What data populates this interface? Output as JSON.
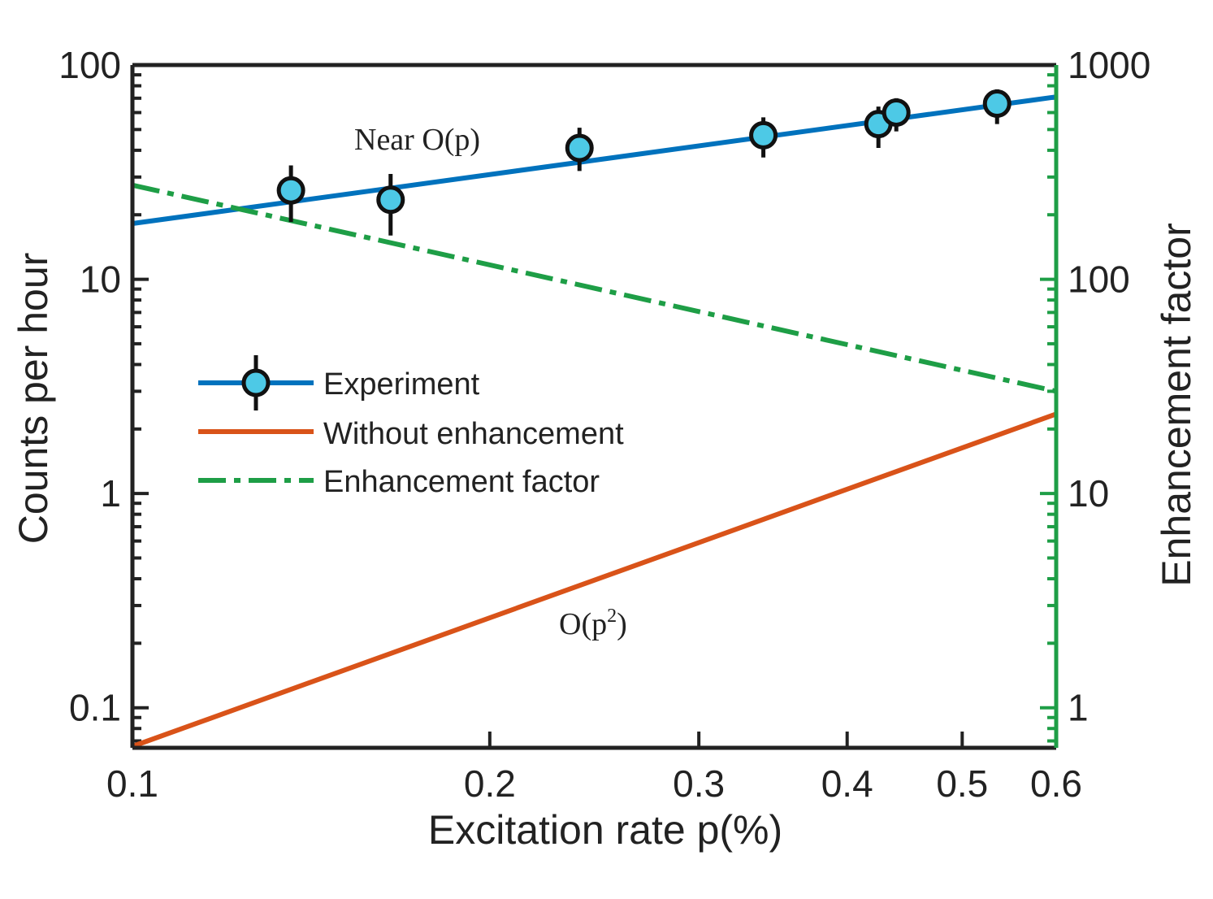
{
  "chart_data": {
    "type": "line",
    "xlabel": "Excitation rate p(%)",
    "ylabel": "Counts per hour",
    "y2label": "Enhancement factor",
    "xscale": "log",
    "yscale": "log",
    "y2scale": "log",
    "xlim": [
      0.1,
      0.6
    ],
    "ylim": [
      0.065,
      100
    ],
    "y2lim": [
      0.65,
      1000
    ],
    "xticks": [
      0.1,
      0.2,
      0.3,
      0.4,
      0.5,
      0.6
    ],
    "xtick_labels": [
      "0.1",
      "0.2",
      "0.3",
      "0.4",
      "0.5",
      "0.6"
    ],
    "yticks": [
      0.1,
      1,
      10,
      100
    ],
    "ytick_labels": [
      "0.1",
      "1",
      "10",
      "100"
    ],
    "y2ticks": [
      1,
      10,
      100,
      1000
    ],
    "y2tick_labels": [
      "1",
      "10",
      "100",
      "1000"
    ],
    "legend_position": "center-left",
    "series": [
      {
        "name": "Experiment",
        "kind": "scatter-errorbar",
        "axis": "left",
        "x": [
          0.136,
          0.165,
          0.238,
          0.34,
          0.425,
          0.44,
          0.535
        ],
        "y": [
          26,
          23.5,
          41,
          47,
          53,
          60,
          66
        ],
        "yerr_low": [
          18.5,
          16,
          32,
          37,
          41,
          49,
          53
        ],
        "yerr_high": [
          34,
          31,
          51,
          57,
          64,
          70,
          77
        ]
      },
      {
        "name": "Experiment",
        "kind": "fit-line",
        "axis": "left",
        "x": [
          0.1,
          0.6
        ],
        "y": [
          18.2,
          71
        ]
      },
      {
        "name": "Without enhancement",
        "kind": "line",
        "axis": "left",
        "x": [
          0.1,
          0.6
        ],
        "y": [
          0.066,
          2.35
        ]
      },
      {
        "name": "Enhancement factor",
        "kind": "dashdot-line",
        "axis": "right",
        "x": [
          0.1,
          0.6
        ],
        "y": [
          275,
          30
        ]
      }
    ],
    "annotations": {
      "linear": "Near O(p)",
      "quad_prefix": "O(p",
      "quad_sup": "2",
      "quad_suffix": ")"
    },
    "colors": {
      "experiment_line": "#0072bd",
      "marker_fill": "#4dc9e6",
      "without": "#d95319",
      "enhancement": "#1e9e46",
      "axis": "#222222"
    }
  }
}
